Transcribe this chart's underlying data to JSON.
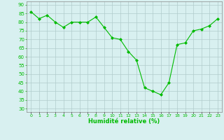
{
  "x": [
    0,
    1,
    2,
    3,
    4,
    5,
    6,
    7,
    8,
    9,
    10,
    11,
    12,
    13,
    14,
    15,
    16,
    17,
    18,
    19,
    20,
    21,
    22,
    23
  ],
  "y": [
    86,
    82,
    84,
    80,
    77,
    80,
    80,
    80,
    83,
    77,
    71,
    70,
    63,
    58,
    42,
    40,
    38,
    45,
    67,
    68,
    75,
    76,
    78,
    82
  ],
  "line_color": "#00bb00",
  "marker_color": "#00bb00",
  "bg_color": "#d8f0f0",
  "grid_color": "#b0cccc",
  "xlabel": "Humidité relative (%)",
  "xlabel_color": "#00bb00",
  "yticks": [
    30,
    35,
    40,
    45,
    50,
    55,
    60,
    65,
    70,
    75,
    80,
    85,
    90
  ],
  "ylim": [
    28,
    92
  ],
  "xlim": [
    -0.5,
    23.5
  ],
  "tick_color": "#00bb00",
  "spine_color": "#888888"
}
